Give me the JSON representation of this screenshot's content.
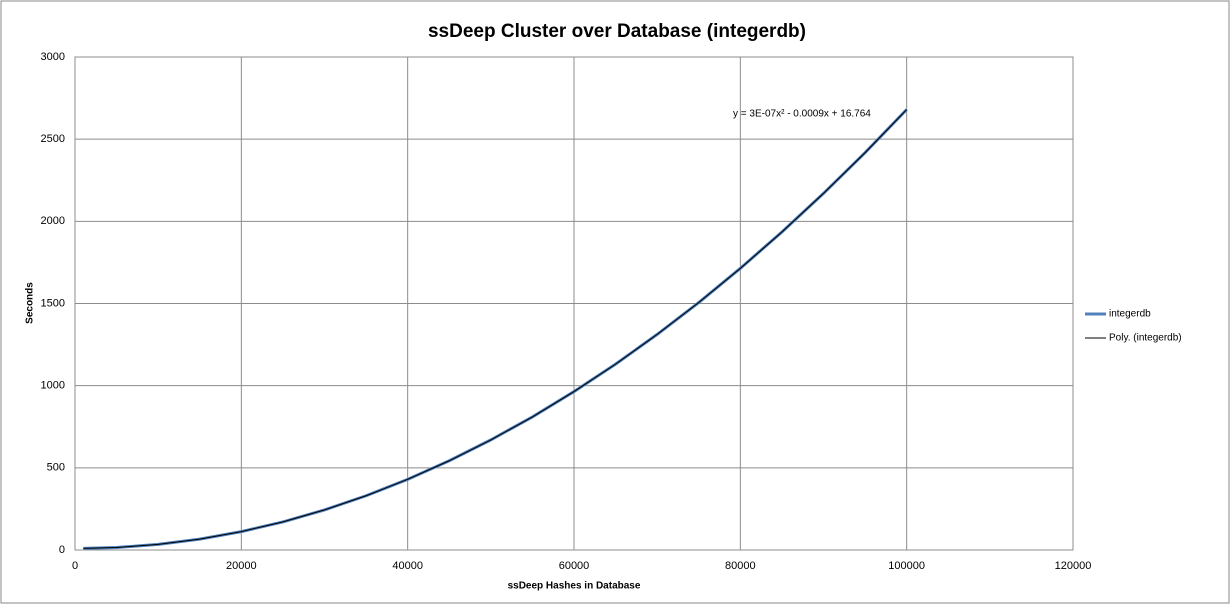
{
  "chart_data": {
    "type": "line",
    "title": "ssDeep Cluster over Database (integerdb)",
    "xlabel": "ssDeep Hashes in Database",
    "ylabel": "Seconds",
    "annotation": "y = 3E-07x² - 0.0009x + 16.764",
    "x": [
      1000,
      5000,
      10000,
      15000,
      20000,
      25000,
      30000,
      35000,
      40000,
      45000,
      50000,
      55000,
      60000,
      65000,
      70000,
      75000,
      80000,
      85000,
      90000,
      95000,
      100000
    ],
    "series": [
      {
        "name": "integerdb",
        "color": "#4f81bd",
        "values": [
          10,
          15,
          34,
          66,
          112,
          171,
          244,
          330,
          430,
          543,
          670,
          810,
          964,
          1131,
          1312,
          1506,
          1714,
          1935,
          2170,
          2418,
          2680
        ]
      },
      {
        "name": "Poly. (integerdb)",
        "color": "#000000",
        "values": [
          10,
          15,
          34,
          66,
          112,
          171,
          244,
          330,
          430,
          543,
          670,
          810,
          964,
          1131,
          1312,
          1506,
          1714,
          1935,
          2170,
          2418,
          2680
        ]
      }
    ],
    "xlim": [
      0,
      120000
    ],
    "xticks": [
      0,
      20000,
      40000,
      60000,
      80000,
      100000,
      120000
    ],
    "ylim": [
      0,
      3000
    ],
    "yticks": [
      0,
      500,
      1000,
      1500,
      2000,
      2500,
      3000
    ],
    "grid": true,
    "legend": "right"
  }
}
